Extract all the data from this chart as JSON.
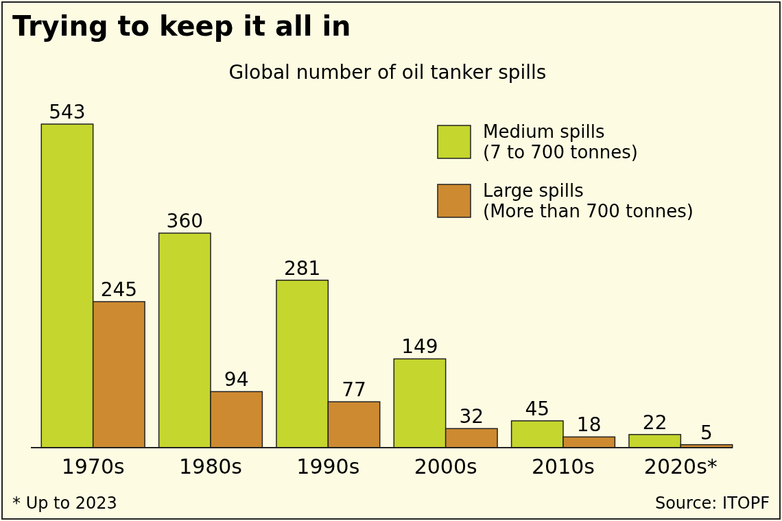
{
  "chart_data": {
    "type": "bar",
    "title": "Trying to keep it all in",
    "subtitle": "Global number of oil tanker spills",
    "categories": [
      "1970s",
      "1980s",
      "1990s",
      "2000s",
      "2010s",
      "2020s*"
    ],
    "series": [
      {
        "name": "Medium spills\n(7 to 700 tonnes)",
        "color": "#c5d62e",
        "values": [
          543,
          360,
          281,
          149,
          45,
          22
        ]
      },
      {
        "name": "Large spills\n(More than 700 tonnes)",
        "color": "#cd8a30",
        "values": [
          245,
          94,
          77,
          32,
          18,
          5
        ]
      }
    ],
    "data_labels": true,
    "legend": "top right",
    "annotations": [
      "* Up to 2023",
      "Source: ITOPF"
    ]
  }
}
